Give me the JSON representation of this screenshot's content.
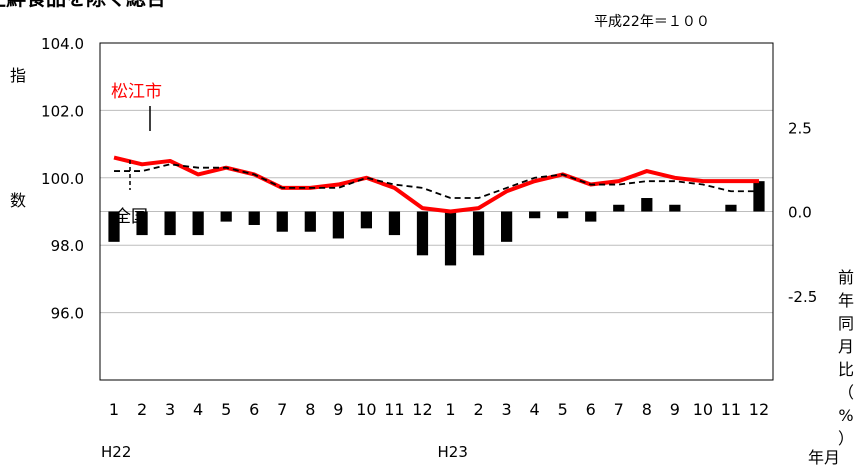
{
  "title": "生鮮食品を除く総合",
  "base_note": "平成22年＝１００",
  "chart_data": {
    "type": "line",
    "months": [
      "1",
      "2",
      "3",
      "4",
      "5",
      "6",
      "7",
      "8",
      "9",
      "10",
      "11",
      "12",
      "1",
      "2",
      "3",
      "4",
      "5",
      "6",
      "7",
      "8",
      "9",
      "10",
      "11",
      "12"
    ],
    "year_labels": [
      {
        "label": "H22",
        "index": 0
      },
      {
        "label": "H23",
        "index": 12
      }
    ],
    "x_axis_corner_label": "年月",
    "left_axis": {
      "label_top": "指",
      "label_bottom": "数",
      "ticks": [
        "104.0",
        "102.0",
        "100.0",
        "98.0",
        "96.0"
      ],
      "range": [
        94.0,
        104.0
      ]
    },
    "right_axis": {
      "label_chars": [
        "前",
        "年",
        "同",
        "月",
        "比",
        "（",
        "%",
        "）"
      ],
      "ticks": [
        "2.5",
        "0.0",
        "-2.5"
      ],
      "range": [
        -5.0,
        5.0
      ]
    },
    "series": [
      {
        "name": "松江市",
        "type": "line",
        "color": "#ff0000",
        "values": [
          100.6,
          100.4,
          100.5,
          100.1,
          100.3,
          100.1,
          99.7,
          99.7,
          99.8,
          100.0,
          99.7,
          99.1,
          99.0,
          99.1,
          99.6,
          99.9,
          100.1,
          99.8,
          99.9,
          100.2,
          100.0,
          99.9,
          99.9,
          99.9
        ]
      },
      {
        "name": "全国",
        "type": "line",
        "dashed": true,
        "color": "#000000",
        "values": [
          100.2,
          100.2,
          100.4,
          100.3,
          100.3,
          100.1,
          99.7,
          99.7,
          99.7,
          100.0,
          99.8,
          99.7,
          99.4,
          99.4,
          99.7,
          100.0,
          100.1,
          99.8,
          99.8,
          99.9,
          99.9,
          99.8,
          99.6,
          99.6
        ]
      },
      {
        "name": "前年同月比",
        "type": "bar",
        "color": "#000000",
        "values": [
          -0.9,
          -0.7,
          -0.7,
          -0.7,
          -0.3,
          -0.4,
          -0.6,
          -0.6,
          -0.8,
          -0.5,
          -0.7,
          -1.3,
          -1.6,
          -1.3,
          -0.9,
          -0.2,
          -0.2,
          -0.3,
          0.2,
          0.4,
          0.2,
          0.0,
          0.2,
          0.9
        ]
      }
    ],
    "annotations": [
      {
        "text": "松江市",
        "color": "#ff0000"
      },
      {
        "text": "全国",
        "color": "#000000"
      }
    ],
    "grid": true
  }
}
